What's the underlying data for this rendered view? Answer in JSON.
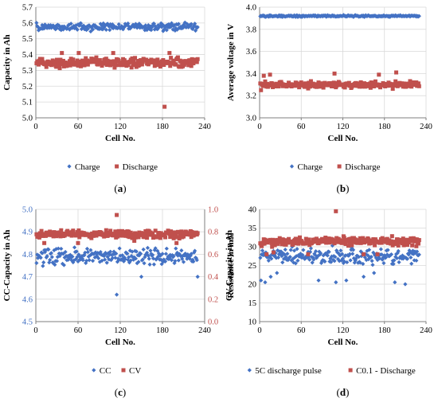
{
  "chart_data": [
    {
      "id": "a",
      "panel_label": "a",
      "type": "scatter",
      "xlabel": "Cell No.",
      "ylabel": "Capacity in Ah",
      "xlim": [
        0,
        240
      ],
      "ylim": [
        5.0,
        5.7
      ],
      "xticks": [
        "0",
        "60",
        "120",
        "180",
        "240"
      ],
      "yticks": [
        "5.0",
        "5.1",
        "5.2",
        "5.3",
        "5.4",
        "5.5",
        "5.6",
        "5.7"
      ],
      "grid": true,
      "legend_position": "bottom",
      "series": [
        {
          "name": "Charge",
          "marker": "diamond",
          "color": "#4472c4",
          "axis": "left",
          "count": 230,
          "center": 5.575,
          "spread": 0.025,
          "outliers": []
        },
        {
          "name": "Discharge",
          "marker": "square",
          "color": "#c0504d",
          "axis": "left",
          "count": 230,
          "center": 5.35,
          "spread": 0.03,
          "outliers": [
            [
              183,
              5.07
            ],
            [
              37,
              5.41
            ],
            [
              61,
              5.41
            ],
            [
              110,
              5.41
            ],
            [
              190,
              5.41
            ]
          ]
        }
      ]
    },
    {
      "id": "b",
      "panel_label": "b",
      "type": "scatter",
      "xlabel": "Cell No.",
      "ylabel": "Average voltage in V",
      "xlim": [
        0,
        240
      ],
      "ylim": [
        3.0,
        4.0
      ],
      "xticks": [
        "0",
        "60",
        "120",
        "180",
        "240"
      ],
      "yticks": [
        "3.0",
        "3.2",
        "3.4",
        "3.6",
        "3.8",
        "4.0"
      ],
      "grid": true,
      "legend_position": "bottom",
      "series": [
        {
          "name": "Charge",
          "marker": "diamond",
          "color": "#4472c4",
          "axis": "left",
          "count": 230,
          "center": 3.92,
          "spread": 0.008,
          "outliers": []
        },
        {
          "name": "Discharge",
          "marker": "square",
          "color": "#c0504d",
          "axis": "left",
          "count": 230,
          "center": 3.3,
          "spread": 0.03,
          "outliers": [
            [
              6,
              3.38
            ],
            [
              15,
              3.39
            ],
            [
              108,
              3.4
            ],
            [
              172,
              3.39
            ],
            [
              197,
              3.41
            ],
            [
              2,
              3.25
            ]
          ]
        }
      ]
    },
    {
      "id": "c",
      "panel_label": "c",
      "type": "scatter",
      "xlabel": "Cell No.",
      "ylabel": "CC-Capacity in Ah",
      "ylabel_right": "CV-Capacity in Ah",
      "xlim": [
        0,
        240
      ],
      "ylim": [
        4.5,
        5.0
      ],
      "ylim_right": [
        0.0,
        1.0
      ],
      "xticks": [
        "0",
        "60",
        "120",
        "180",
        "240"
      ],
      "yticks": [
        "4.5",
        "4.6",
        "4.7",
        "4.8",
        "4.9",
        "5.0"
      ],
      "yticks_right": [
        "0.0",
        "0.2",
        "0.4",
        "0.6",
        "0.8",
        "1.0"
      ],
      "grid": true,
      "legend_position": "bottom",
      "series": [
        {
          "name": "CC",
          "marker": "diamond",
          "color": "#4472c4",
          "axis": "left",
          "count": 230,
          "center": 4.79,
          "spread": 0.04,
          "outliers": [
            [
              115,
              4.62
            ],
            [
              150,
              4.7
            ],
            [
              230,
              4.7
            ]
          ]
        },
        {
          "name": "CV",
          "marker": "square",
          "color": "#c0504d",
          "axis": "right",
          "count": 230,
          "center": 0.78,
          "spread": 0.035,
          "outliers": [
            [
              115,
              0.95
            ],
            [
              12,
              0.7
            ],
            [
              60,
              0.7
            ],
            [
              140,
              0.72
            ],
            [
              200,
              0.7
            ]
          ]
        }
      ]
    },
    {
      "id": "d",
      "panel_label": "d",
      "type": "scatter",
      "xlabel": "Cell No.",
      "ylabel": "Resistance in mΩ",
      "xlim": [
        0,
        240
      ],
      "ylim": [
        10,
        40
      ],
      "xticks": [
        "0",
        "60",
        "120",
        "180",
        "240"
      ],
      "yticks": [
        "10",
        "15",
        "20",
        "25",
        "30",
        "35",
        "40"
      ],
      "grid": true,
      "legend_position": "bottom",
      "series": [
        {
          "name": "5C discharge pulse",
          "marker": "diamond",
          "color": "#4472c4",
          "axis": "left",
          "count": 230,
          "center": 27.5,
          "spread": 2.2,
          "outliers": [
            [
              2,
              21
            ],
            [
              8,
              20.5
            ],
            [
              16,
              22
            ],
            [
              25,
              23
            ],
            [
              85,
              21
            ],
            [
              110,
              20.5
            ],
            [
              125,
              21
            ],
            [
              150,
              22
            ],
            [
              165,
              23
            ],
            [
              195,
              20.5
            ],
            [
              210,
              20
            ]
          ]
        },
        {
          "name": "C0.1 - Discharge",
          "marker": "square",
          "color": "#c0504d",
          "axis": "left",
          "count": 230,
          "center": 31.5,
          "spread": 1.2,
          "outliers": [
            [
              110,
              39.5
            ],
            [
              10,
              28
            ],
            [
              20,
              28.5
            ],
            [
              70,
              28
            ],
            [
              150,
              28
            ],
            [
              170,
              28
            ]
          ]
        }
      ]
    }
  ]
}
